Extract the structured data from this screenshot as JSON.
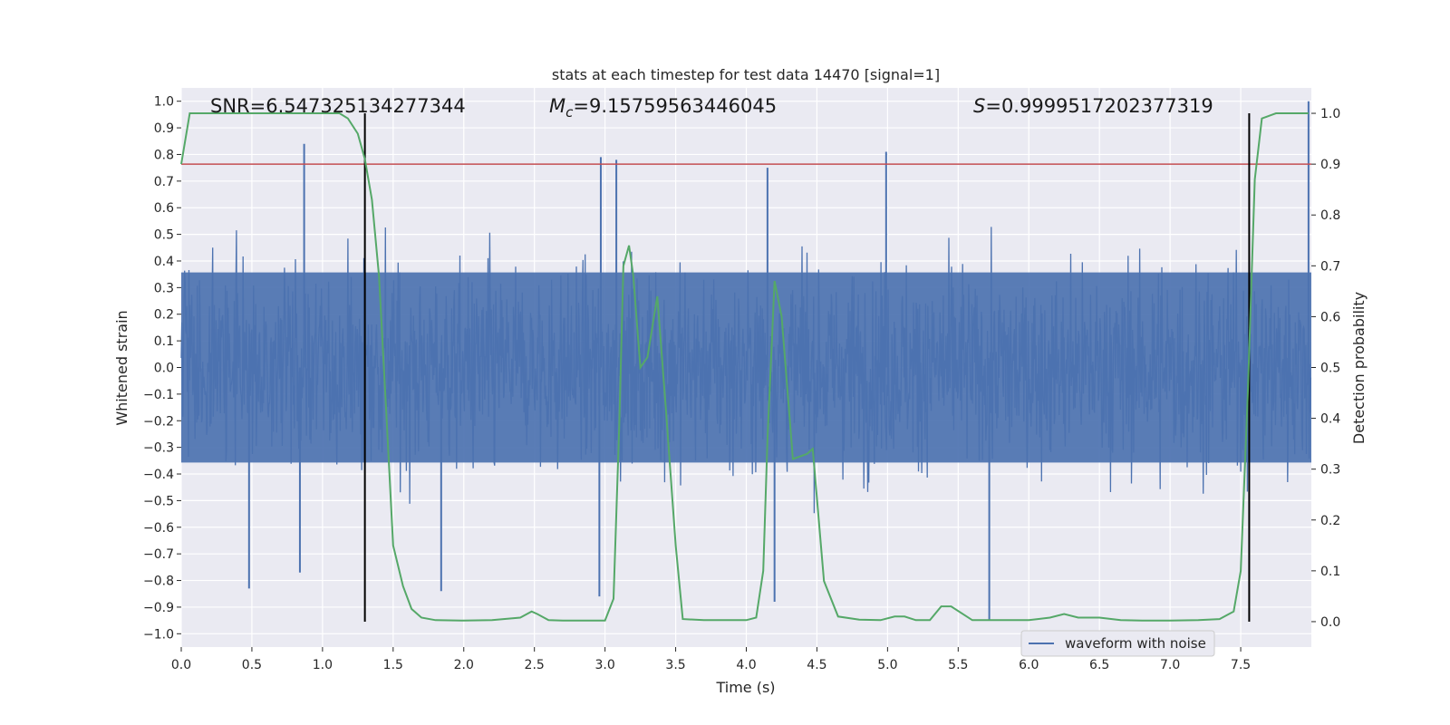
{
  "chart_data": {
    "type": "line",
    "title": "stats at each timestep for test data 14470 [signal=1]",
    "xlabel": "Time (s)",
    "ylabel": "Whitened strain",
    "y2label": "Detection probability",
    "xlim": [
      0,
      8
    ],
    "ylim": [
      -1.05,
      1.05
    ],
    "y2lim": [
      -0.05,
      1.05
    ],
    "xticks": [
      0.0,
      0.5,
      1.0,
      1.5,
      2.0,
      2.5,
      3.0,
      3.5,
      4.0,
      4.5,
      5.0,
      5.5,
      6.0,
      6.5,
      7.0,
      7.5
    ],
    "yticks": [
      1.0,
      0.9,
      0.8,
      0.7,
      0.6,
      0.5,
      0.4,
      0.3,
      0.2,
      0.1,
      0.0,
      -0.1,
      -0.2,
      -0.3,
      -0.4,
      -0.5,
      -0.6,
      -0.7,
      -0.8,
      -0.9,
      -1.0
    ],
    "y2ticks": [
      1.0,
      0.9,
      0.8,
      0.7,
      0.6,
      0.5,
      0.4,
      0.3,
      0.2,
      0.1,
      0.0
    ],
    "xtick_labels": [
      "0.0",
      "0.5",
      "1.0",
      "1.5",
      "2.0",
      "2.5",
      "3.0",
      "3.5",
      "4.0",
      "4.5",
      "5.0",
      "5.5",
      "6.0",
      "6.5",
      "7.0",
      "7.5"
    ],
    "ytick_labels": [
      "1.0",
      "0.9",
      "0.8",
      "0.7",
      "0.6",
      "0.5",
      "0.4",
      "0.3",
      "0.2",
      "0.1",
      "0.0",
      "−0.1",
      "−0.2",
      "−0.3",
      "−0.4",
      "−0.5",
      "−0.6",
      "−0.7",
      "−0.8",
      "−0.9",
      "−1.0"
    ],
    "y2tick_labels": [
      "1.0",
      "0.9",
      "0.8",
      "0.7",
      "0.6",
      "0.5",
      "0.4",
      "0.3",
      "0.2",
      "0.1",
      "0.0"
    ],
    "annotations": {
      "snr": "SNR=6.547325134277344",
      "mc_symbol": "M",
      "mc_sub": "c",
      "mc_value": "=9.15759563446045",
      "s_symbol": "S",
      "s_value": "=0.9999517202377319"
    },
    "threshold_probability": 0.9,
    "vertical_lines_time": [
      1.3,
      7.56
    ],
    "legend": {
      "label": "waveform with noise",
      "placement": "lower-right"
    },
    "waveform": {
      "name": "waveform with noise",
      "color": "#4c72b0",
      "sample_rate_hz": 512,
      "typical_envelope": 0.42,
      "noted_peaks": [
        {
          "t": 0.87,
          "v": 0.84
        },
        {
          "t": 0.48,
          "v": -0.83
        },
        {
          "t": 0.84,
          "v": -0.77
        },
        {
          "t": 1.84,
          "v": -0.84
        },
        {
          "t": 2.97,
          "v": 0.79
        },
        {
          "t": 2.96,
          "v": -0.86
        },
        {
          "t": 4.2,
          "v": -0.88
        },
        {
          "t": 4.99,
          "v": 0.81
        },
        {
          "t": 5.72,
          "v": -0.95
        },
        {
          "t": 3.08,
          "v": 0.78
        },
        {
          "t": 4.15,
          "v": 0.75
        },
        {
          "t": 7.98,
          "v": 1.0
        }
      ]
    },
    "probability": {
      "name": "detection probability",
      "color": "#55a868",
      "t": [
        0.0,
        0.06,
        0.12,
        0.2,
        0.3,
        0.5,
        0.7,
        0.9,
        1.0,
        1.05,
        1.12,
        1.18,
        1.25,
        1.3,
        1.35,
        1.4,
        1.45,
        1.5,
        1.57,
        1.63,
        1.7,
        1.8,
        2.0,
        2.2,
        2.4,
        2.48,
        2.52,
        2.6,
        2.7,
        2.9,
        3.0,
        3.06,
        3.1,
        3.13,
        3.17,
        3.2,
        3.25,
        3.3,
        3.37,
        3.43,
        3.5,
        3.55,
        3.7,
        3.9,
        4.0,
        4.07,
        4.12,
        4.15,
        4.2,
        4.25,
        4.33,
        4.43,
        4.47,
        4.55,
        4.65,
        4.8,
        4.95,
        5.05,
        5.12,
        5.2,
        5.3,
        5.38,
        5.45,
        5.6,
        5.8,
        6.0,
        6.15,
        6.25,
        6.35,
        6.5,
        6.65,
        6.8,
        7.0,
        7.2,
        7.35,
        7.45,
        7.5,
        7.55,
        7.6,
        7.65,
        7.75,
        7.85,
        7.98
      ],
      "p": [
        0.9,
        1.0,
        1.0,
        1.0,
        1.0,
        1.0,
        1.0,
        1.0,
        1.0,
        1.0,
        1.0,
        0.99,
        0.96,
        0.91,
        0.83,
        0.68,
        0.42,
        0.15,
        0.07,
        0.025,
        0.008,
        0.003,
        0.002,
        0.003,
        0.008,
        0.02,
        0.015,
        0.003,
        0.002,
        0.002,
        0.002,
        0.045,
        0.38,
        0.7,
        0.74,
        0.68,
        0.5,
        0.52,
        0.64,
        0.42,
        0.15,
        0.005,
        0.003,
        0.003,
        0.003,
        0.008,
        0.1,
        0.36,
        0.67,
        0.6,
        0.32,
        0.33,
        0.34,
        0.08,
        0.01,
        0.004,
        0.003,
        0.01,
        0.01,
        0.003,
        0.003,
        0.03,
        0.03,
        0.003,
        0.003,
        0.003,
        0.008,
        0.015,
        0.008,
        0.008,
        0.003,
        0.002,
        0.002,
        0.003,
        0.005,
        0.02,
        0.1,
        0.45,
        0.87,
        0.99,
        1.0,
        1.0,
        1.0
      ]
    },
    "threshold_color": "#c44e52",
    "plot_background": "#eaeaf2",
    "grid": true
  }
}
